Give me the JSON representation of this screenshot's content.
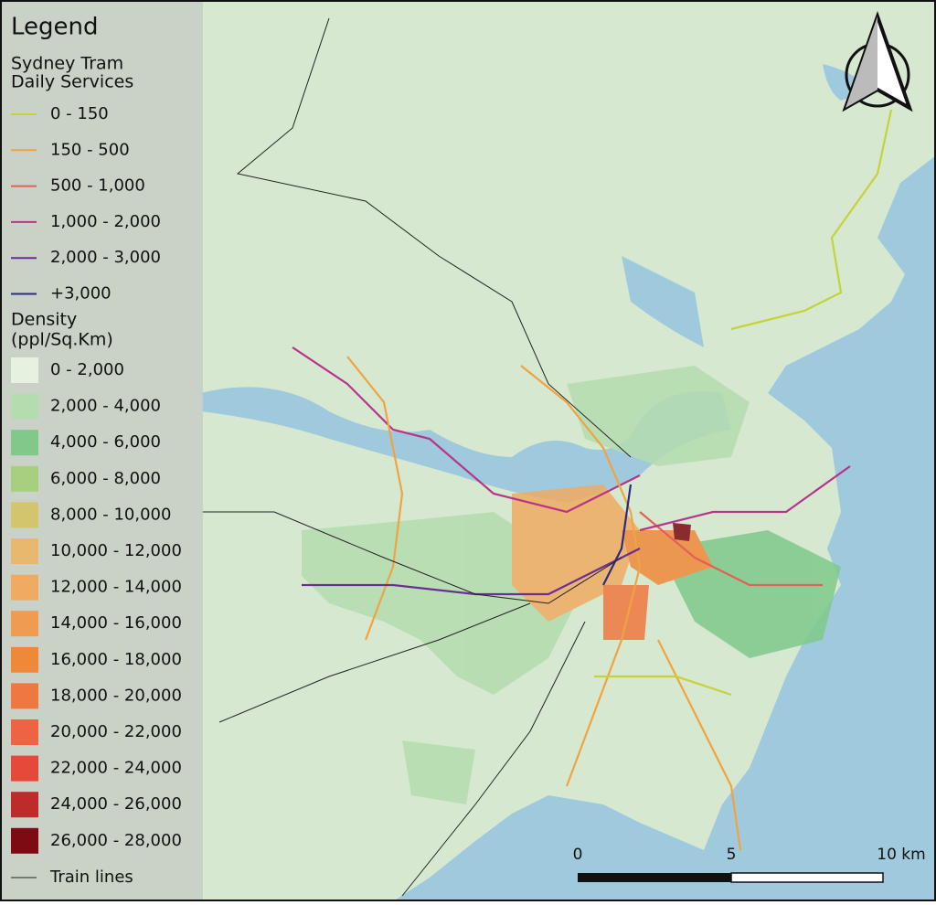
{
  "legend": {
    "title": "Legend",
    "tram": {
      "heading": [
        "Sydney Tram",
        "Daily Services"
      ],
      "items": [
        {
          "label": "0 - 150",
          "color": "#c5d33a"
        },
        {
          "label": "150 - 500",
          "color": "#f0a343"
        },
        {
          "label": "500 - 1,000",
          "color": "#e2605a"
        },
        {
          "label": "1,000 - 2,000",
          "color": "#b73589"
        },
        {
          "label": "2,000 - 3,000",
          "color": "#6b2d98"
        },
        {
          "label": "+3,000",
          "color": "#2b2c7e"
        }
      ]
    },
    "density": {
      "heading": [
        "Density",
        "(ppl/Sq.Km)"
      ],
      "items": [
        {
          "label": "0 - 2,000",
          "color": "#e6f1df"
        },
        {
          "label": "2,000 - 4,000",
          "color": "#b5dcae"
        },
        {
          "label": "4,000 - 6,000",
          "color": "#80c98b"
        },
        {
          "label": "6,000 - 8,000",
          "color": "#a6cf7f"
        },
        {
          "label": "8,000 - 10,000",
          "color": "#d3c56e"
        },
        {
          "label": "10,000 - 12,000",
          "color": "#e9b86f"
        },
        {
          "label": "12,000 - 14,000",
          "color": "#efab62"
        },
        {
          "label": "14,000 - 16,000",
          "color": "#ef9b52"
        },
        {
          "label": "16,000 - 18,000",
          "color": "#ef893a"
        },
        {
          "label": "18,000 - 20,000",
          "color": "#ef7841"
        },
        {
          "label": "20,000 - 22,000",
          "color": "#ef6244"
        },
        {
          "label": "22,000 - 24,000",
          "color": "#e6493a"
        },
        {
          "label": "24,000 - 26,000",
          "color": "#bf2a2a"
        },
        {
          "label": "26,000 - 28,000",
          "color": "#7e0a14"
        }
      ]
    },
    "train": {
      "label": "Train lines",
      "color": "#222222"
    }
  },
  "scale_bar": {
    "labels": [
      "0",
      "5",
      "10 km"
    ]
  }
}
